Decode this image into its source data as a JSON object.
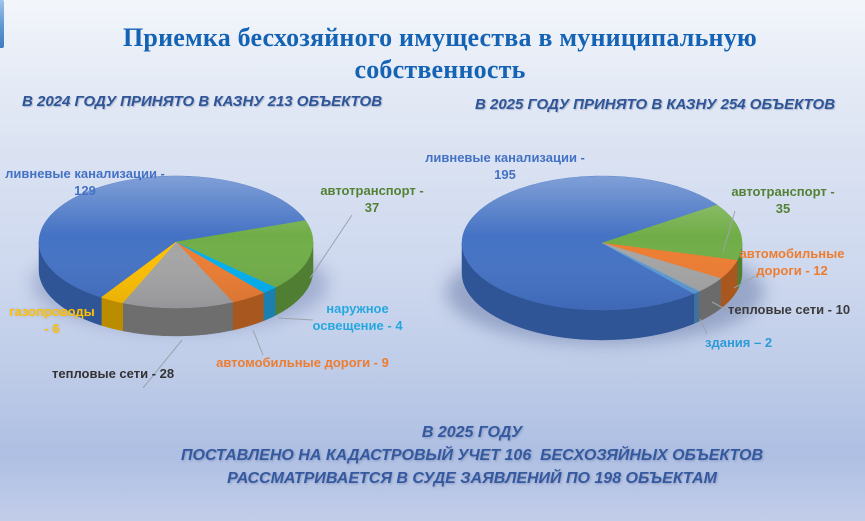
{
  "slide": {
    "title": "Приемка бесхозяйного имущества в муниципальную собственность",
    "title_color": "#1563B5",
    "heading_color": "#2E5597",
    "footer_color": "#35599F",
    "leader_line_color": "#9BA3AD"
  },
  "chart_data": [
    {
      "type": "pie",
      "title": "В 2024 ГОДУ ПРИНЯТО В КАЗНУ 213 ОБЪЕКТОВ",
      "total": 213,
      "start_angle_deg": 213,
      "legend_position": "around",
      "slices": [
        {
          "label": "ливневые канализации",
          "value": 129,
          "text": "ливневые канализации - 129",
          "color": "#4472C4",
          "side_color": "#2F5597",
          "text_color": "#4472C4"
        },
        {
          "label": "автотранспорт",
          "value": 37,
          "text": "автотранспорт - 37",
          "color": "#70AD47",
          "side_color": "#507E32",
          "text_color": "#538135"
        },
        {
          "label": "наружное освещение",
          "value": 4,
          "text": "наружное освещение - 4",
          "color": "#00B0F0",
          "side_color": "#1C80AE",
          "text_color": "#27A7E0"
        },
        {
          "label": "автомобильные дороги",
          "value": 9,
          "text": "автомобильные дороги - 9",
          "color": "#ED7D31",
          "side_color": "#A8581F",
          "text_color": "#ED7D31"
        },
        {
          "label": "тепловые сети",
          "value": 28,
          "text": "тепловые сети - 28",
          "color": "#A5A5A5",
          "side_color": "#6E6E6E",
          "text_color": "#333333"
        },
        {
          "label": "газопроводы",
          "value": 6,
          "text": "газопроводы - 6",
          "color": "#FFC000",
          "side_color": "#BC8C00",
          "text_color": "#FFC000"
        }
      ]
    },
    {
      "type": "pie",
      "title": "В 2025 ГОДУ ПРИНЯТО В КАЗНУ 254 ОБЪЕКТОВ",
      "total": 254,
      "start_angle_deg": 139,
      "legend_position": "around",
      "slices": [
        {
          "label": "ливневые канализации",
          "value": 195,
          "text": "ливневые канализации - 195",
          "color": "#4472C4",
          "side_color": "#2F5597",
          "text_color": "#4472C4"
        },
        {
          "label": "автотранспорт",
          "value": 35,
          "text": "автотранспорт - 35",
          "color": "#70AD47",
          "side_color": "#507E32",
          "text_color": "#538135"
        },
        {
          "label": "автомобильные дороги",
          "value": 12,
          "text": "автомобильные дороги - 12",
          "color": "#ED7D31",
          "side_color": "#A8581F",
          "text_color": "#ED7D31"
        },
        {
          "label": "тепловые сети",
          "value": 10,
          "text": "тепловые сети - 10",
          "color": "#A5A5A5",
          "side_color": "#6B6B6B",
          "text_color": "#3B3B3B"
        },
        {
          "label": "здания",
          "value": 2,
          "text": "здания – 2",
          "color": "#5B9BD5",
          "side_color": "#41719C",
          "text_color": "#2D9BD8"
        }
      ]
    }
  ],
  "footer": {
    "lines": [
      "В 2025 ГОДУ",
      "ПОСТАВЛЕНО НА КАДАСТРОВЫЙ УЧЕТ 106  БЕСХОЗЯЙНЫХ ОБЪЕКТОВ",
      "РАССМАТРИВАЕТСЯ В СУДЕ ЗАЯВЛЕНИЙ ПО 198 ОБЪЕКТАМ"
    ]
  }
}
